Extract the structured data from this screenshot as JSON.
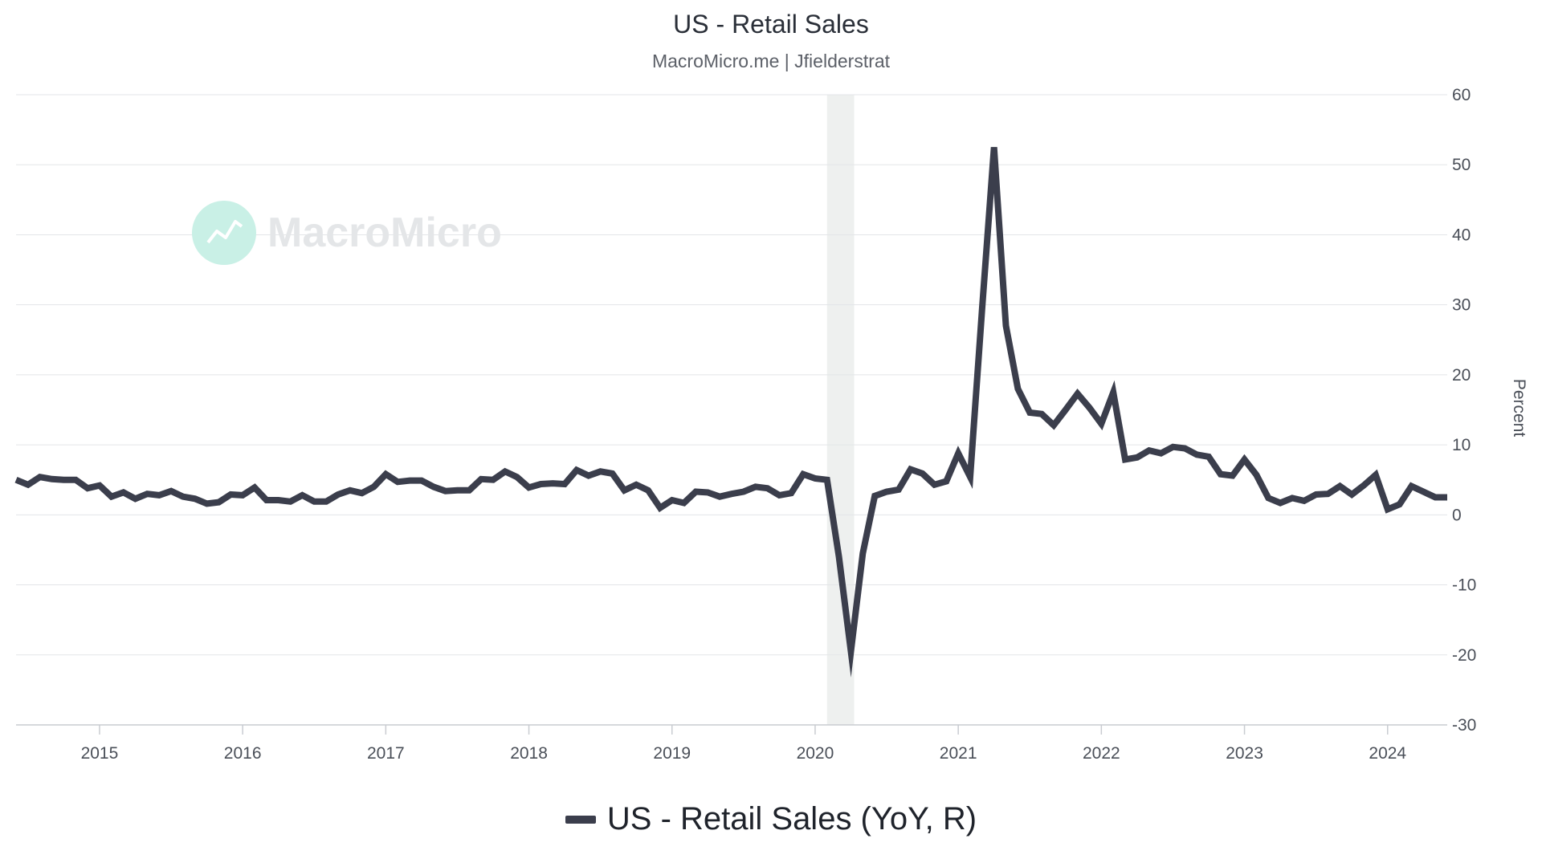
{
  "chart_data": {
    "type": "line",
    "title": "US - Retail Sales",
    "subtitle": "MacroMicro.me | Jfielderstrat",
    "watermark": "MacroMicro",
    "ylabel": "Percent",
    "ylim": [
      -30,
      60
    ],
    "yticks": [
      -30,
      -20,
      -10,
      0,
      10,
      20,
      30,
      40,
      50,
      60
    ],
    "xlim": [
      "2014-06",
      "2024-06"
    ],
    "xticks": [
      "2015",
      "2016",
      "2017",
      "2018",
      "2019",
      "2020",
      "2021",
      "2022",
      "2023",
      "2024"
    ],
    "grid": true,
    "legend_position": "bottom-center",
    "recession_band": {
      "start": "2020-02",
      "end": "2020-04"
    },
    "colors": {
      "series": "#3b3e4c",
      "grid": "#e3e5e8",
      "band": "#eef0ef",
      "watermark": "#b9ece0"
    },
    "series": [
      {
        "name": "US - Retail Sales (YoY, R)",
        "x": [
          "2014-06",
          "2014-07",
          "2014-08",
          "2014-09",
          "2014-10",
          "2014-11",
          "2014-12",
          "2015-01",
          "2015-02",
          "2015-03",
          "2015-04",
          "2015-05",
          "2015-06",
          "2015-07",
          "2015-08",
          "2015-09",
          "2015-10",
          "2015-11",
          "2015-12",
          "2016-01",
          "2016-02",
          "2016-03",
          "2016-04",
          "2016-05",
          "2016-06",
          "2016-07",
          "2016-08",
          "2016-09",
          "2016-10",
          "2016-11",
          "2016-12",
          "2017-01",
          "2017-02",
          "2017-03",
          "2017-04",
          "2017-05",
          "2017-06",
          "2017-07",
          "2017-08",
          "2017-09",
          "2017-10",
          "2017-11",
          "2017-12",
          "2018-01",
          "2018-02",
          "2018-03",
          "2018-04",
          "2018-05",
          "2018-06",
          "2018-07",
          "2018-08",
          "2018-09",
          "2018-10",
          "2018-11",
          "2018-12",
          "2019-01",
          "2019-02",
          "2019-03",
          "2019-04",
          "2019-05",
          "2019-06",
          "2019-07",
          "2019-08",
          "2019-09",
          "2019-10",
          "2019-11",
          "2019-12",
          "2020-01",
          "2020-02",
          "2020-03",
          "2020-04",
          "2020-05",
          "2020-06",
          "2020-07",
          "2020-08",
          "2020-09",
          "2020-10",
          "2020-11",
          "2020-12",
          "2021-01",
          "2021-02",
          "2021-03",
          "2021-04",
          "2021-05",
          "2021-06",
          "2021-07",
          "2021-08",
          "2021-09",
          "2021-10",
          "2021-11",
          "2021-12",
          "2022-01",
          "2022-02",
          "2022-03",
          "2022-04",
          "2022-05",
          "2022-06",
          "2022-07",
          "2022-08",
          "2022-09",
          "2022-10",
          "2022-11",
          "2022-12",
          "2023-01",
          "2023-02",
          "2023-03",
          "2023-04",
          "2023-05",
          "2023-06",
          "2023-07",
          "2023-08",
          "2023-09",
          "2023-10",
          "2023-11",
          "2023-12",
          "2024-01",
          "2024-02",
          "2024-03",
          "2024-04",
          "2024-05",
          "2024-06"
        ],
        "y": [
          5.0,
          4.3,
          5.4,
          5.1,
          5.0,
          5.0,
          3.8,
          4.2,
          2.6,
          3.2,
          2.3,
          3.0,
          2.8,
          3.4,
          2.6,
          2.3,
          1.6,
          1.8,
          2.9,
          2.8,
          3.9,
          2.1,
          2.1,
          1.9,
          2.8,
          1.9,
          1.9,
          2.9,
          3.5,
          3.1,
          4.0,
          5.8,
          4.7,
          4.9,
          4.9,
          4.0,
          3.4,
          3.5,
          3.5,
          5.1,
          5.0,
          6.2,
          5.4,
          3.9,
          4.4,
          4.5,
          4.4,
          6.4,
          5.6,
          6.2,
          5.9,
          3.5,
          4.3,
          3.5,
          1.0,
          2.1,
          1.7,
          3.3,
          3.2,
          2.6,
          3.0,
          3.3,
          4.0,
          3.8,
          2.8,
          3.1,
          5.8,
          5.2,
          5.0,
          -6.0,
          -19.5,
          -5.5,
          2.7,
          3.3,
          3.6,
          6.5,
          5.9,
          4.3,
          4.8,
          8.8,
          5.4,
          29.5,
          52.5,
          27.0,
          18.0,
          14.6,
          14.4,
          12.8,
          15.0,
          17.3,
          15.3,
          13.0,
          17.5,
          7.9,
          8.2,
          9.2,
          8.8,
          9.7,
          9.5,
          8.6,
          8.3,
          5.8,
          5.6,
          7.9,
          5.7,
          2.4,
          1.7,
          2.4,
          2.0,
          2.9,
          3.0,
          4.1,
          2.9,
          4.2,
          5.7,
          0.8,
          1.5,
          4.1,
          3.3,
          2.5,
          2.5
        ]
      }
    ]
  }
}
